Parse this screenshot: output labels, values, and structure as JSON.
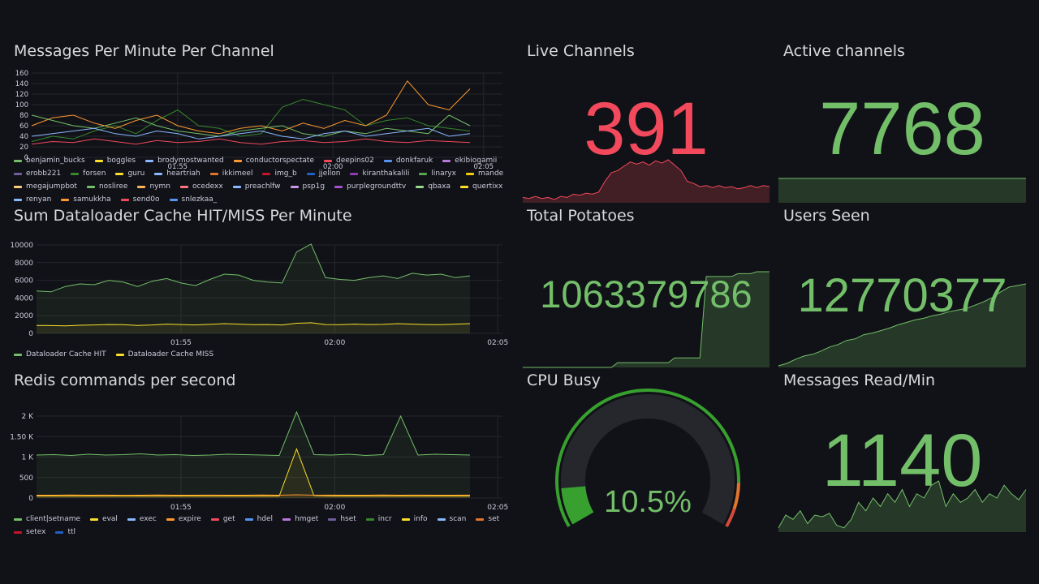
{
  "panels": {
    "messages": {
      "title": "Messages Per Minute Per Channel",
      "legend": [
        {
          "name": "benjamin_bucks",
          "color": "#73bf69"
        },
        {
          "name": "boggles",
          "color": "#fade2a"
        },
        {
          "name": "brodymostwanted",
          "color": "#8ab8ff"
        },
        {
          "name": "conductorspectate",
          "color": "#ff9830"
        },
        {
          "name": "deepins02",
          "color": "#f2495c"
        },
        {
          "name": "donkfaruk",
          "color": "#5794f2"
        },
        {
          "name": "ekibiogamii",
          "color": "#b877d9"
        },
        {
          "name": "erobb221",
          "color": "#705da0"
        },
        {
          "name": "forsen",
          "color": "#37872d"
        },
        {
          "name": "guru",
          "color": "#fade2a"
        },
        {
          "name": "heartriah",
          "color": "#8ab8ff"
        },
        {
          "name": "ikkimeel",
          "color": "#e0752d"
        },
        {
          "name": "img_b",
          "color": "#c4162a"
        },
        {
          "name": "jjellon",
          "color": "#1f60c4"
        },
        {
          "name": "kiranthakalili",
          "color": "#8f3bb8"
        },
        {
          "name": "linaryx",
          "color": "#56a64b"
        },
        {
          "name": "mande",
          "color": "#f2cc0c"
        },
        {
          "name": "megajumpbot",
          "color": "#ffcb7d"
        },
        {
          "name": "nosliree",
          "color": "#73bf69"
        },
        {
          "name": "nymn",
          "color": "#ffb357"
        },
        {
          "name": "ocedexx",
          "color": "#ff7383"
        },
        {
          "name": "preachlfw",
          "color": "#8ab8ff"
        },
        {
          "name": "psp1g",
          "color": "#ca95e5"
        },
        {
          "name": "purplegroundttv",
          "color": "#a352cc"
        },
        {
          "name": "qbaxa",
          "color": "#96d98d"
        },
        {
          "name": "quertixx",
          "color": "#fade2a"
        },
        {
          "name": "renyan",
          "color": "#8ab8ff"
        },
        {
          "name": "samukkha",
          "color": "#ff9830"
        },
        {
          "name": "send0o",
          "color": "#f2495c"
        },
        {
          "name": "snlezkaa_",
          "color": "#5794f2"
        }
      ]
    },
    "dataloader": {
      "title": "Sum Dataloader Cache HIT/MISS Per Minute",
      "legend": [
        {
          "name": "Dataloader Cache HIT",
          "color": "#73bf69"
        },
        {
          "name": "Dataloader Cache MISS",
          "color": "#fade2a"
        }
      ]
    },
    "redis": {
      "title": "Redis commands per second",
      "legend": [
        {
          "name": "client|setname",
          "color": "#73bf69"
        },
        {
          "name": "eval",
          "color": "#fade2a"
        },
        {
          "name": "exec",
          "color": "#8ab8ff"
        },
        {
          "name": "expire",
          "color": "#ff9830"
        },
        {
          "name": "get",
          "color": "#f2495c"
        },
        {
          "name": "hdel",
          "color": "#5794f2"
        },
        {
          "name": "hmget",
          "color": "#b877d9"
        },
        {
          "name": "hset",
          "color": "#705da0"
        },
        {
          "name": "incr",
          "color": "#37872d"
        },
        {
          "name": "info",
          "color": "#fade2a"
        },
        {
          "name": "scan",
          "color": "#8ab8ff"
        },
        {
          "name": "set",
          "color": "#e0752d"
        },
        {
          "name": "setex",
          "color": "#c4162a"
        },
        {
          "name": "ttl",
          "color": "#1f60c4"
        }
      ]
    },
    "live_channels": {
      "title": "Live Channels",
      "value": "391",
      "color": "#f2495c"
    },
    "active_channels": {
      "title": "Active channels",
      "value": "7768",
      "color": "#73bf69"
    },
    "total_potatoes": {
      "title": "Total Potatoes",
      "value": "1063379786",
      "color": "#73bf69"
    },
    "users_seen": {
      "title": "Users Seen",
      "value": "12770377",
      "color": "#73bf69"
    },
    "cpu_busy": {
      "title": "CPU Busy",
      "value": "10.5%",
      "percent": 10.5,
      "color": "#73bf69"
    },
    "messages_read": {
      "title": "Messages Read/Min",
      "value": "1140",
      "color": "#73bf69"
    }
  },
  "chart_data": [
    {
      "type": "line",
      "title": "Messages Per Minute Per Channel",
      "x_ticks": [
        "01:55",
        "02:00",
        "02:05"
      ],
      "y_ticks": [
        "0",
        "20",
        "40",
        "60",
        "80",
        "100",
        "120",
        "140",
        "160"
      ],
      "ylim": [
        0,
        160
      ],
      "series_note": "30 channel series, mostly between 10 and 90 messages/min, peaks near 150",
      "series": [
        {
          "name": "forsen",
          "values": [
            30,
            40,
            35,
            50,
            60,
            45,
            70,
            90,
            60,
            55,
            40,
            45,
            95,
            110,
            100,
            90,
            60,
            70,
            75,
            60,
            55,
            50
          ]
        },
        {
          "name": "conductorspectate",
          "values": [
            60,
            75,
            80,
            65,
            55,
            70,
            80,
            60,
            50,
            45,
            55,
            60,
            50,
            65,
            55,
            70,
            60,
            80,
            145,
            100,
            90,
            130
          ]
        },
        {
          "name": "benjamin_bucks",
          "values": [
            80,
            70,
            60,
            55,
            65,
            75,
            60,
            50,
            45,
            40,
            50,
            55,
            60,
            45,
            40,
            50,
            45,
            55,
            50,
            45,
            80,
            60
          ]
        },
        {
          "name": "brodymostwanted",
          "values": [
            40,
            45,
            50,
            55,
            45,
            40,
            50,
            45,
            35,
            40,
            45,
            50,
            40,
            35,
            45,
            50,
            40,
            45,
            50,
            55,
            40,
            45
          ]
        },
        {
          "name": "deepins02",
          "values": [
            25,
            30,
            28,
            35,
            30,
            25,
            32,
            28,
            30,
            35,
            28,
            25,
            30,
            32,
            28,
            30,
            35,
            30,
            28,
            32,
            30,
            28
          ]
        }
      ]
    },
    {
      "type": "area",
      "title": "Sum Dataloader Cache HIT/MISS Per Minute",
      "x_ticks": [
        "01:55",
        "02:00",
        "02:05"
      ],
      "y_ticks": [
        "0",
        "2000",
        "4000",
        "6000",
        "8000",
        "10000"
      ],
      "ylim": [
        0,
        10000
      ],
      "series": [
        {
          "name": "Dataloader Cache HIT",
          "values": [
            4800,
            4700,
            5300,
            5600,
            5500,
            6000,
            5800,
            5300,
            5900,
            6200,
            5700,
            5400,
            6100,
            6700,
            6600,
            6000,
            5800,
            5700,
            9200,
            10100,
            6300,
            6100,
            6000,
            6300,
            6500,
            6200,
            6800,
            6600,
            6700,
            6300,
            6500
          ]
        },
        {
          "name": "Dataloader Cache MISS",
          "values": [
            900,
            880,
            850,
            920,
            950,
            1000,
            980,
            900,
            950,
            1050,
            1000,
            950,
            1020,
            1100,
            1050,
            980,
            1000,
            950,
            1150,
            1200,
            1000,
            980,
            1050,
            1000,
            1020,
            1100,
            1050,
            1000,
            980,
            1050,
            1100
          ]
        }
      ]
    },
    {
      "type": "area",
      "title": "Redis commands per second",
      "x_ticks": [
        "01:55",
        "02:00",
        "02:05"
      ],
      "y_ticks": [
        "0",
        "500",
        "1 K",
        "1.50 K",
        "2 K"
      ],
      "ylim": [
        0,
        2000
      ],
      "series": [
        {
          "name": "client|setname",
          "values": [
            1050,
            1060,
            1040,
            1070,
            1050,
            1060,
            1080,
            1050,
            1060,
            1040,
            1050,
            1070,
            1060,
            1050,
            1040,
            2100,
            1060,
            1050,
            1070,
            1040,
            1060,
            2000,
            1050,
            1070,
            1060,
            1050
          ]
        },
        {
          "name": "eval",
          "values": [
            50,
            50,
            50,
            50,
            50,
            50,
            50,
            50,
            50,
            50,
            50,
            50,
            50,
            50,
            50,
            1200,
            60,
            50,
            50,
            50,
            50,
            50,
            50,
            50,
            50,
            50
          ]
        },
        {
          "name": "expire",
          "values": [
            70,
            70,
            75,
            70,
            72,
            68,
            70,
            75,
            70,
            70,
            72,
            70,
            70,
            75,
            70,
            80,
            70,
            72,
            70,
            70,
            75,
            70,
            72,
            70,
            70,
            72
          ]
        }
      ]
    },
    {
      "type": "area",
      "title": "Live Channels sparkline",
      "values": [
        5,
        4,
        6,
        4,
        5,
        3,
        6,
        5,
        8,
        7,
        9,
        8,
        10,
        20,
        28,
        30,
        34,
        38,
        36,
        38,
        35,
        39,
        37,
        40,
        35,
        30,
        20,
        18,
        15,
        16,
        14,
        16,
        14,
        15,
        13,
        14,
        16,
        14,
        16,
        15
      ]
    },
    {
      "type": "area",
      "title": "Active channels sparkline",
      "values": [
        7768,
        7768,
        7768,
        7768,
        7768,
        7768,
        7768,
        7768,
        7768,
        7768
      ]
    },
    {
      "type": "area",
      "title": "Total Potatoes sparkline",
      "values": [
        0,
        0,
        0,
        0,
        0,
        0,
        0,
        0,
        0,
        0,
        0,
        0,
        0,
        0,
        0,
        5,
        5,
        5,
        5,
        5,
        5,
        5,
        5,
        5,
        10,
        10,
        10,
        10,
        10,
        95,
        95,
        95,
        95,
        95,
        98,
        98,
        98,
        100,
        100,
        100
      ]
    },
    {
      "type": "area",
      "title": "Users Seen sparkline",
      "values": [
        2,
        5,
        10,
        14,
        16,
        20,
        25,
        28,
        33,
        35,
        40,
        42,
        45,
        48,
        52,
        55,
        58,
        60,
        63,
        65,
        68,
        70,
        72,
        76,
        80,
        85,
        92,
        98,
        100,
        102
      ]
    },
    {
      "type": "area",
      "title": "Messages Read/Min sparkline",
      "values": [
        5,
        20,
        15,
        25,
        10,
        20,
        18,
        22,
        8,
        5,
        15,
        35,
        25,
        40,
        30,
        45,
        35,
        50,
        30,
        45,
        40,
        55,
        60,
        30,
        45,
        35,
        40,
        50,
        35,
        45,
        40,
        55,
        45,
        38,
        50
      ]
    }
  ]
}
